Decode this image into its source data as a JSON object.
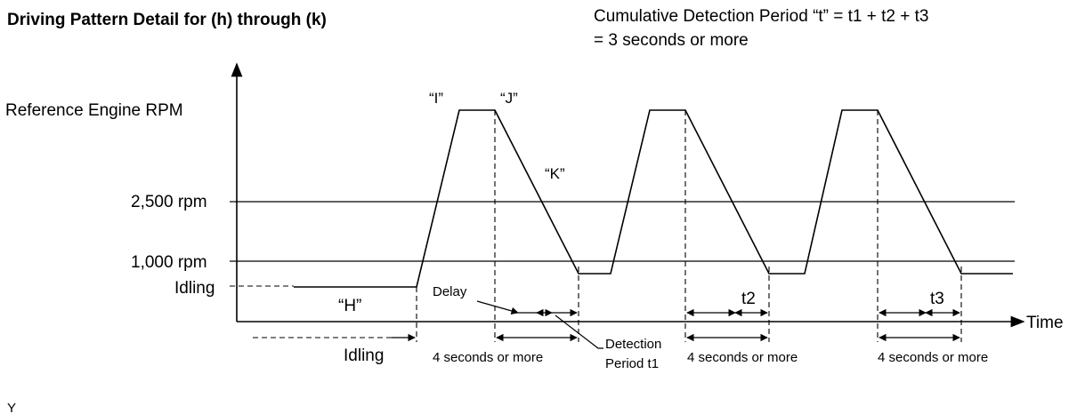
{
  "title": "Driving Pattern Detail for (h) through (k)",
  "cumulative": {
    "line1": "Cumulative Detection Period “t” = t1 + t2 + t3",
    "line2": "= 3 seconds or more"
  },
  "y_labels": {
    "ref": "Reference Engine RPM",
    "rpm2500": "2,500 rpm",
    "rpm1000": "1,000 rpm",
    "idling": "Idling"
  },
  "x_axis_label": "Time",
  "points": {
    "h": "“H”",
    "i": "“I”",
    "j": "“J”",
    "k": "“K”"
  },
  "annotations": {
    "delay": "Delay",
    "detection_l1": "Detection",
    "detection_l2": "Period t1",
    "t2": "t2",
    "t3": "t3",
    "idling_bottom": "Idling",
    "four_sec_1": "4 seconds or more",
    "four_sec_2": "4 seconds or more",
    "four_sec_3": "4 seconds or more"
  },
  "footer": "Y"
}
